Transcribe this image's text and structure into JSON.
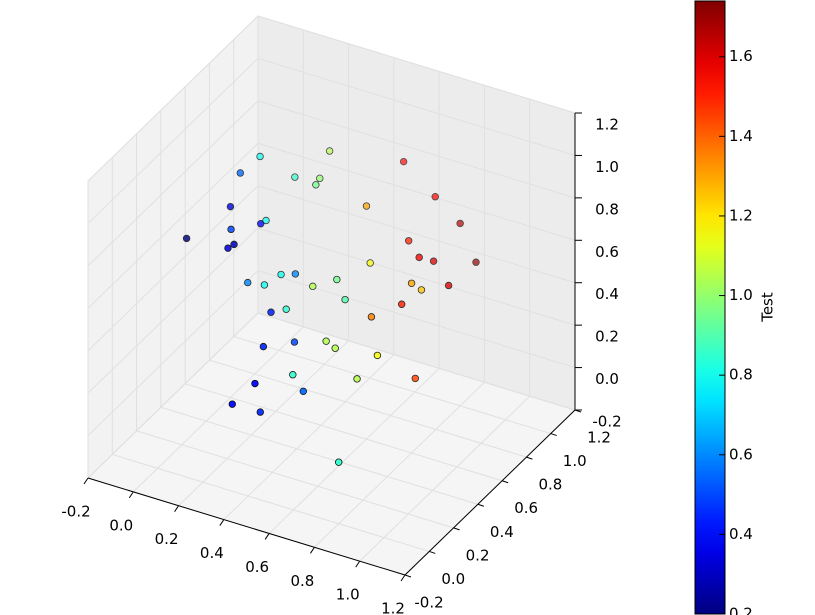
{
  "chart_data": {
    "type": "scatter3d",
    "colormap": "jet",
    "x": [
      -0.14,
      -0.01,
      -0.03,
      0.0,
      0.11,
      0.15,
      0.15,
      0.08,
      0.05,
      0.07,
      0.17,
      0.18,
      0.27,
      0.44,
      0.47,
      0.69,
      0.8,
      0.68,
      0.78,
      0.79,
      0.87,
      0.91,
      0.51,
      0.8,
      0.79,
      0.81,
      0.73,
      0.47,
      0.56,
      0.31,
      0.17,
      0.26,
      0.13,
      0.15,
      0.34,
      0.3,
      0.36,
      0.39,
      0.53,
      0.57,
      0.81,
      0.72,
      0.87,
      0.49,
      0.59,
      0.43,
      0.33,
      0.4,
      0.8
    ],
    "y": [
      0.5,
      0.7,
      0.9,
      0.6,
      0.4,
      0.3,
      0.35,
      0.7,
      0.8,
      1.0,
      1.1,
      1.0,
      0.8,
      0.9,
      1.15,
      1.0,
      1.0,
      0.8,
      0.7,
      0.8,
      1.0,
      0.7,
      0.8,
      0.6,
      0.7,
      0.5,
      0.4,
      0.6,
      0.5,
      0.7,
      0.7,
      0.65,
      0.5,
      0.6,
      0.3,
      0.5,
      0.2,
      0.4,
      0.4,
      0.4,
      0.3,
      0.3,
      0.5,
      0.2,
      0.1,
      0.0,
      0.0,
      0.1,
      0.0
    ],
    "z": [
      0.56,
      0.8,
      0.76,
      0.7,
      0.74,
      0.72,
      0.71,
      0.59,
      0.54,
      0.64,
      0.74,
      0.67,
      0.78,
      0.68,
      0.76,
      0.75,
      0.66,
      0.65,
      0.66,
      0.59,
      0.5,
      0.57,
      0.49,
      0.6,
      0.51,
      0.56,
      0.53,
      0.51,
      0.5,
      0.37,
      0.38,
      0.44,
      0.44,
      0.38,
      0.48,
      0.37,
      0.38,
      0.3,
      0.35,
      0.33,
      0.43,
      0.29,
      0.23,
      0.29,
      0.3,
      0.34,
      0.21,
      0.14,
      0.09
    ],
    "values": [
      0.2,
      0.55,
      0.8,
      0.35,
      0.5,
      0.35,
      0.3,
      0.4,
      0.8,
      0.85,
      1.05,
      1.0,
      0.95,
      1.3,
      1.55,
      1.55,
      1.65,
      1.5,
      1.55,
      1.6,
      1.7,
      1.6,
      1.15,
      1.3,
      1.25,
      1.5,
      1.35,
      0.95,
      0.9,
      1.05,
      0.8,
      0.6,
      0.6,
      0.8,
      0.45,
      0.85,
      0.45,
      0.5,
      1.05,
      1.05,
      1.15,
      1.05,
      1.45,
      0.85,
      0.55,
      0.4,
      0.4,
      0.45,
      0.85
    ],
    "xlim": [
      -0.2,
      1.2
    ],
    "ylim": [
      -0.2,
      1.2
    ],
    "zlim": [
      -0.2,
      1.2
    ],
    "xticks": [
      -0.2,
      {
        "value": 0,
        "label": "0.0"
      },
      0.2,
      0.4,
      0.6,
      0.8,
      {
        "value": 1,
        "label": "1.0"
      },
      1.2
    ],
    "yticks": [
      -0.2,
      {
        "value": 0,
        "label": "0.0"
      },
      0.2,
      0.4,
      0.6,
      0.8,
      {
        "value": 1,
        "label": "1.0"
      },
      1.2
    ],
    "zticks": [
      -0.2,
      {
        "value": 0,
        "label": "0.0"
      },
      0.2,
      0.4,
      0.6,
      0.8,
      {
        "value": 1,
        "label": "1.0"
      },
      1.2
    ],
    "clim": [
      0.2,
      1.74
    ],
    "cticks": [
      0.2,
      0.4,
      0.6,
      0.8,
      {
        "value": 1,
        "label": "1.0"
      },
      1.2,
      1.4,
      1.6
    ],
    "colorbar_label": "Test",
    "grid": true
  }
}
